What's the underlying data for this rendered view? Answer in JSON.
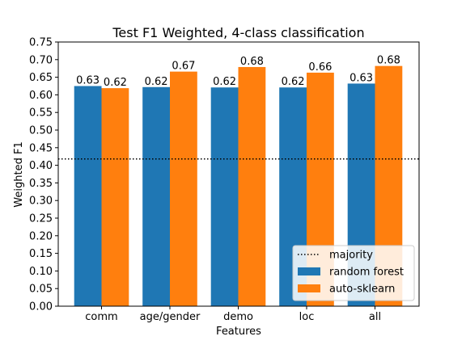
{
  "chart_data": {
    "type": "bar",
    "title": "Test F1 Weighted, 4-class classification",
    "xlabel": "Features",
    "ylabel": "Weighted F1",
    "categories": [
      "comm",
      "age/gender",
      "demo",
      "loc",
      "all"
    ],
    "series": [
      {
        "name": "random forest",
        "color": "#1f77b4",
        "values": [
          0.625,
          0.622,
          0.621,
          0.621,
          0.632
        ],
        "labels": [
          "0.63",
          "0.62",
          "0.62",
          "0.62",
          "0.63"
        ]
      },
      {
        "name": "auto-sklearn",
        "color": "#ff7f0e",
        "values": [
          0.619,
          0.666,
          0.679,
          0.663,
          0.682
        ],
        "labels": [
          "0.62",
          "0.67",
          "0.68",
          "0.66",
          "0.68"
        ]
      }
    ],
    "reference_line": {
      "name": "majority",
      "value": 0.418,
      "style": "dotted",
      "color": "#000000"
    },
    "ylim": [
      0.0,
      0.75
    ],
    "yticks": [
      "0.00",
      "0.05",
      "0.10",
      "0.15",
      "0.20",
      "0.25",
      "0.30",
      "0.35",
      "0.40",
      "0.45",
      "0.50",
      "0.55",
      "0.60",
      "0.65",
      "0.70",
      "0.75"
    ],
    "grid": false,
    "legend_position": "lower-right"
  }
}
